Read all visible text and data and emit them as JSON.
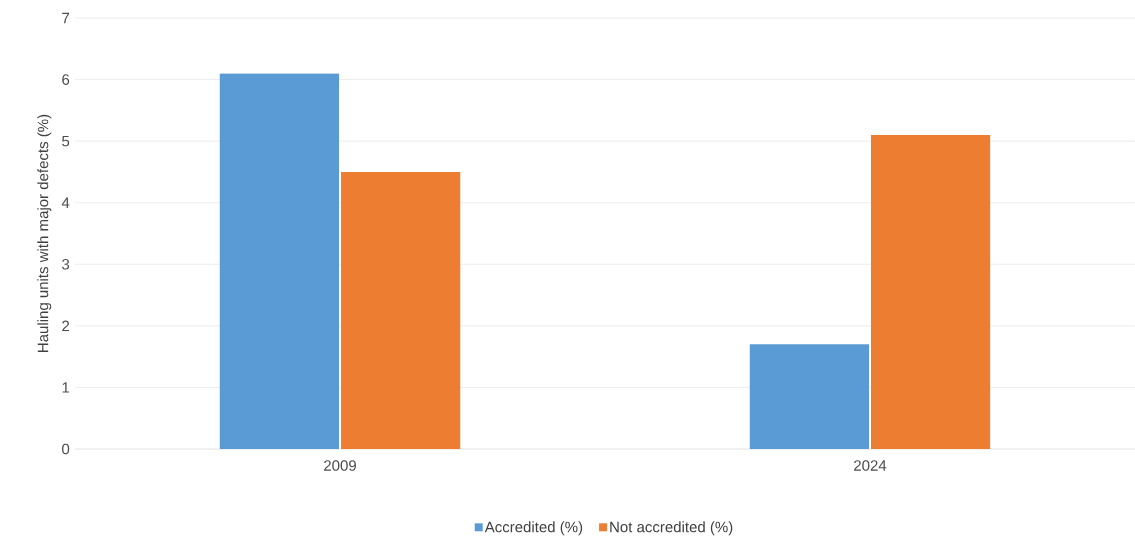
{
  "chart_data": {
    "type": "bar",
    "ylabel": "Hauling units with major defects (%)",
    "categories": [
      "2009",
      "2024"
    ],
    "series": [
      {
        "name": "Accredited (%)",
        "color": "#5b9bd5",
        "values": [
          6.1,
          1.7
        ]
      },
      {
        "name": "Not accredited (%)",
        "color": "#ed7d31",
        "values": [
          4.5,
          5.1
        ]
      }
    ],
    "ylim": [
      0,
      7
    ],
    "yticks": [
      0,
      1,
      2,
      3,
      4,
      5,
      6,
      7
    ],
    "grid": "y",
    "legend": "bottom"
  }
}
